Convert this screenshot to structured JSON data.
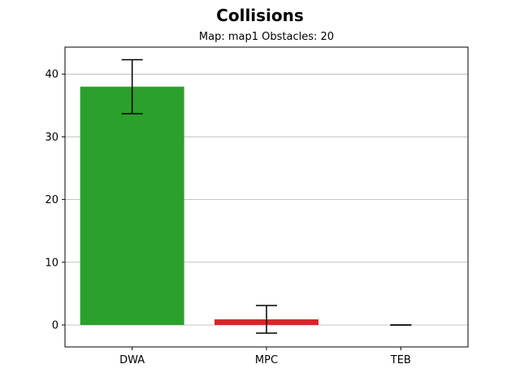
{
  "chart_data": {
    "type": "bar",
    "title": "Collisions",
    "subtitle": "Map: map1 Obstacles: 20",
    "xlabel": "",
    "ylabel": "",
    "categories": [
      "DWA",
      "MPC",
      "TEB"
    ],
    "values": [
      38.0,
      0.9,
      0.0
    ],
    "errors": [
      4.3,
      2.2,
      0.0
    ],
    "colors": [
      "#2ca02c",
      "#d62728",
      "#1f77b4"
    ],
    "ylim": [
      -3.5,
      44.3
    ],
    "yticks": [
      0,
      10,
      20,
      30,
      40
    ],
    "grid": "y",
    "legend": "none"
  }
}
